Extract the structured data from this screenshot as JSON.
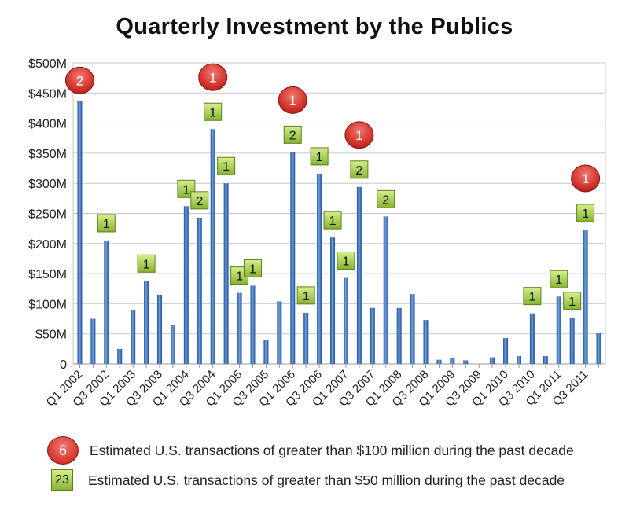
{
  "chart_data": {
    "type": "bar",
    "title": "Quarterly Investment by the Publics",
    "xlabel": "",
    "ylabel": "",
    "ylim": [
      0,
      500
    ],
    "y_unit_labels": [
      "0",
      "$50M",
      "$100M",
      "$150M",
      "$200M",
      "$250M",
      "$300M",
      "$350M",
      "$400M",
      "$450M",
      "$500M"
    ],
    "y_ticks": [
      0,
      50,
      100,
      150,
      200,
      250,
      300,
      350,
      400,
      450,
      500
    ],
    "grid": true,
    "categories": [
      "Q1 2002",
      "Q2 2002",
      "Q3 2002",
      "Q4 2002",
      "Q1 2003",
      "Q2 2003",
      "Q3 2003",
      "Q4 2003",
      "Q1 2004",
      "Q2 2004",
      "Q3 2004",
      "Q4 2004",
      "Q1 2005",
      "Q2 2005",
      "Q3 2005",
      "Q4 2005",
      "Q1 2006",
      "Q2 2006",
      "Q3 2006",
      "Q4 2006",
      "Q1 2007",
      "Q2 2007",
      "Q3 2007",
      "Q4 2007",
      "Q1 2008",
      "Q2 2008",
      "Q3 2008",
      "Q4 2008",
      "Q1 2009",
      "Q2 2009",
      "Q3 2009",
      "Q4 2009",
      "Q1 2010",
      "Q2 2010",
      "Q3 2010",
      "Q4 2010",
      "Q1 2011",
      "Q2 2011",
      "Q3 2011",
      "Q4 2011"
    ],
    "x_tick_labels": [
      "Q1 2002",
      "",
      "Q3 2002",
      "",
      "Q1 2003",
      "",
      "Q3 2003",
      "",
      "Q1 2004",
      "",
      "Q3 2004",
      "",
      "Q1 2005",
      "",
      "Q3 2005",
      "",
      "Q1 2006",
      "",
      "Q3 2006",
      "",
      "Q1 2007",
      "",
      "Q3 2007",
      "",
      "Q1 2008",
      "",
      "Q3 2008",
      "",
      "Q1 2009",
      "",
      "Q3 2009",
      "",
      "Q1 2010",
      "",
      "Q3 2010",
      "",
      "Q1 2011",
      "",
      "Q3 2011",
      ""
    ],
    "values": [
      437,
      75,
      205,
      25,
      90,
      138,
      115,
      65,
      262,
      243,
      390,
      300,
      118,
      130,
      40,
      104,
      352,
      85,
      316,
      210,
      143,
      294,
      93,
      245,
      93,
      116,
      73,
      7,
      10,
      6,
      0,
      11,
      43,
      13,
      84,
      13,
      112,
      76,
      222,
      51
    ],
    "markers": [
      {
        "kind": "circle",
        "count": "2",
        "category": "Q1 2002"
      },
      {
        "kind": "square",
        "count": "1",
        "category": "Q3 2002"
      },
      {
        "kind": "square",
        "count": "1",
        "category": "Q2 2003"
      },
      {
        "kind": "square",
        "count": "1",
        "category": "Q1 2004"
      },
      {
        "kind": "square",
        "count": "2",
        "category": "Q2 2004"
      },
      {
        "kind": "square",
        "count": "1",
        "category": "Q3 2004"
      },
      {
        "kind": "circle",
        "count": "1",
        "category": "Q3 2004"
      },
      {
        "kind": "square",
        "count": "1",
        "category": "Q4 2004"
      },
      {
        "kind": "square",
        "count": "1",
        "category": "Q1 2005"
      },
      {
        "kind": "square",
        "count": "1",
        "category": "Q2 2005"
      },
      {
        "kind": "square",
        "count": "2",
        "category": "Q1 2006"
      },
      {
        "kind": "circle",
        "count": "1",
        "category": "Q1 2006"
      },
      {
        "kind": "square",
        "count": "1",
        "category": "Q2 2006"
      },
      {
        "kind": "square",
        "count": "1",
        "category": "Q3 2006"
      },
      {
        "kind": "square",
        "count": "1",
        "category": "Q4 2006"
      },
      {
        "kind": "square",
        "count": "1",
        "category": "Q1 2007"
      },
      {
        "kind": "square",
        "count": "2",
        "category": "Q2 2007"
      },
      {
        "kind": "circle",
        "count": "1",
        "category": "Q2 2007"
      },
      {
        "kind": "square",
        "count": "2",
        "category": "Q4 2007"
      },
      {
        "kind": "square",
        "count": "1",
        "category": "Q3 2010"
      },
      {
        "kind": "square",
        "count": "1",
        "category": "Q1 2011"
      },
      {
        "kind": "square",
        "count": "1",
        "category": "Q2 2011"
      },
      {
        "kind": "square",
        "count": "1",
        "category": "Q3 2011"
      },
      {
        "kind": "circle",
        "count": "1",
        "category": "Q3 2011"
      }
    ]
  },
  "legend": {
    "items": [
      {
        "kind": "circle",
        "count": "6",
        "label": "Estimated U.S. transactions of greater than $100 million during the past decade"
      },
      {
        "kind": "square",
        "count": "23",
        "label": "Estimated U.S. transactions of greater than $50 million during the past decade"
      }
    ]
  },
  "colors": {
    "bar_light": "#6f9fdc",
    "bar_dark": "#1f4f99",
    "grid": "#c8c8c8",
    "circle_light": "#f07a70",
    "circle_dark": "#b3201c",
    "square_light": "#d6ef8c",
    "square_dark": "#86b334"
  }
}
